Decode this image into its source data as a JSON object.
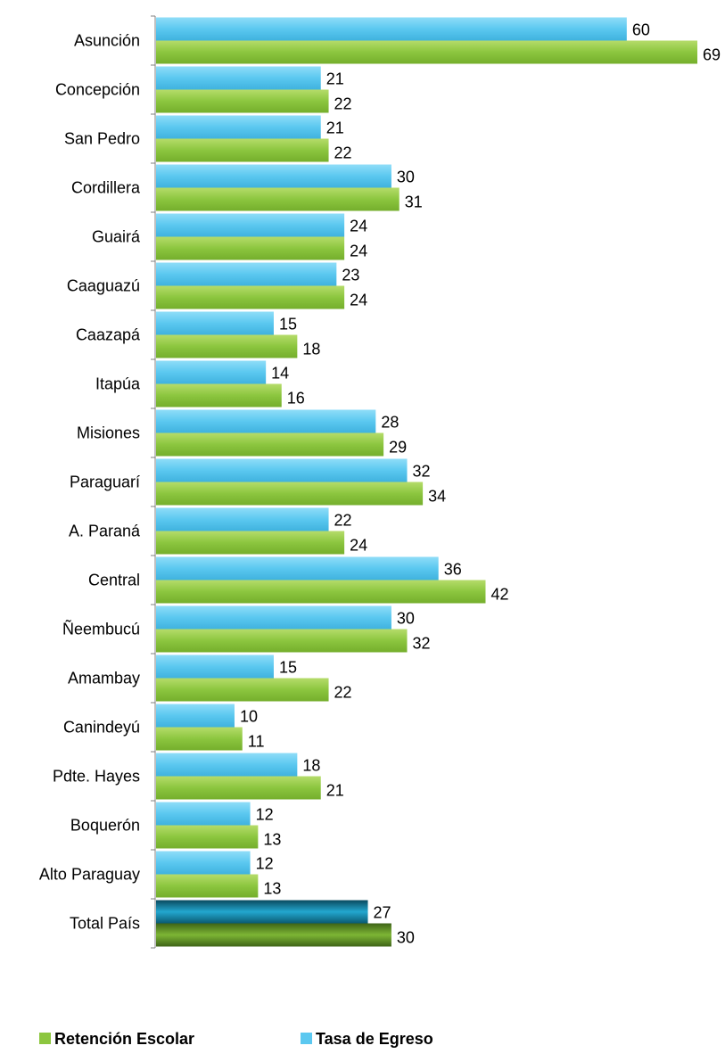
{
  "chart_data": {
    "type": "bar",
    "orientation": "horizontal",
    "categories": [
      "Asunción",
      "Concepción",
      "San Pedro",
      "Cordillera",
      "Guairá",
      "Caaguazú",
      "Caazapá",
      "Itapúa",
      "Misiones",
      "Paraguarí",
      "A. Paraná",
      "Central",
      "Ñeembucú",
      "Amambay",
      "Canindeyú",
      "Pdte. Hayes",
      "Boquerón",
      "Alto Paraguay",
      "Total País"
    ],
    "series": [
      {
        "name": "Tasa de Egreso",
        "color": "#5BC8F0",
        "highlight_color": "#0F7FA0",
        "values": [
          60,
          21,
          21,
          30,
          24,
          23,
          15,
          14,
          28,
          32,
          22,
          36,
          30,
          15,
          10,
          18,
          12,
          12,
          27
        ]
      },
      {
        "name": "Retención Escolar",
        "color": "#8CC63F",
        "highlight_color": "#4E7A1E",
        "values": [
          69,
          22,
          22,
          31,
          24,
          24,
          18,
          16,
          29,
          34,
          24,
          42,
          32,
          22,
          11,
          21,
          13,
          13,
          30
        ]
      }
    ],
    "highlight_category": "Total País",
    "xlim": [
      0,
      69
    ],
    "grid": false,
    "data_labels": true,
    "legend": {
      "placement": "bottom",
      "entries": [
        {
          "label": "Retención Escolar",
          "color": "#8CC63F"
        },
        {
          "label": "Tasa de Egreso",
          "color": "#5BC8F0"
        }
      ]
    }
  }
}
